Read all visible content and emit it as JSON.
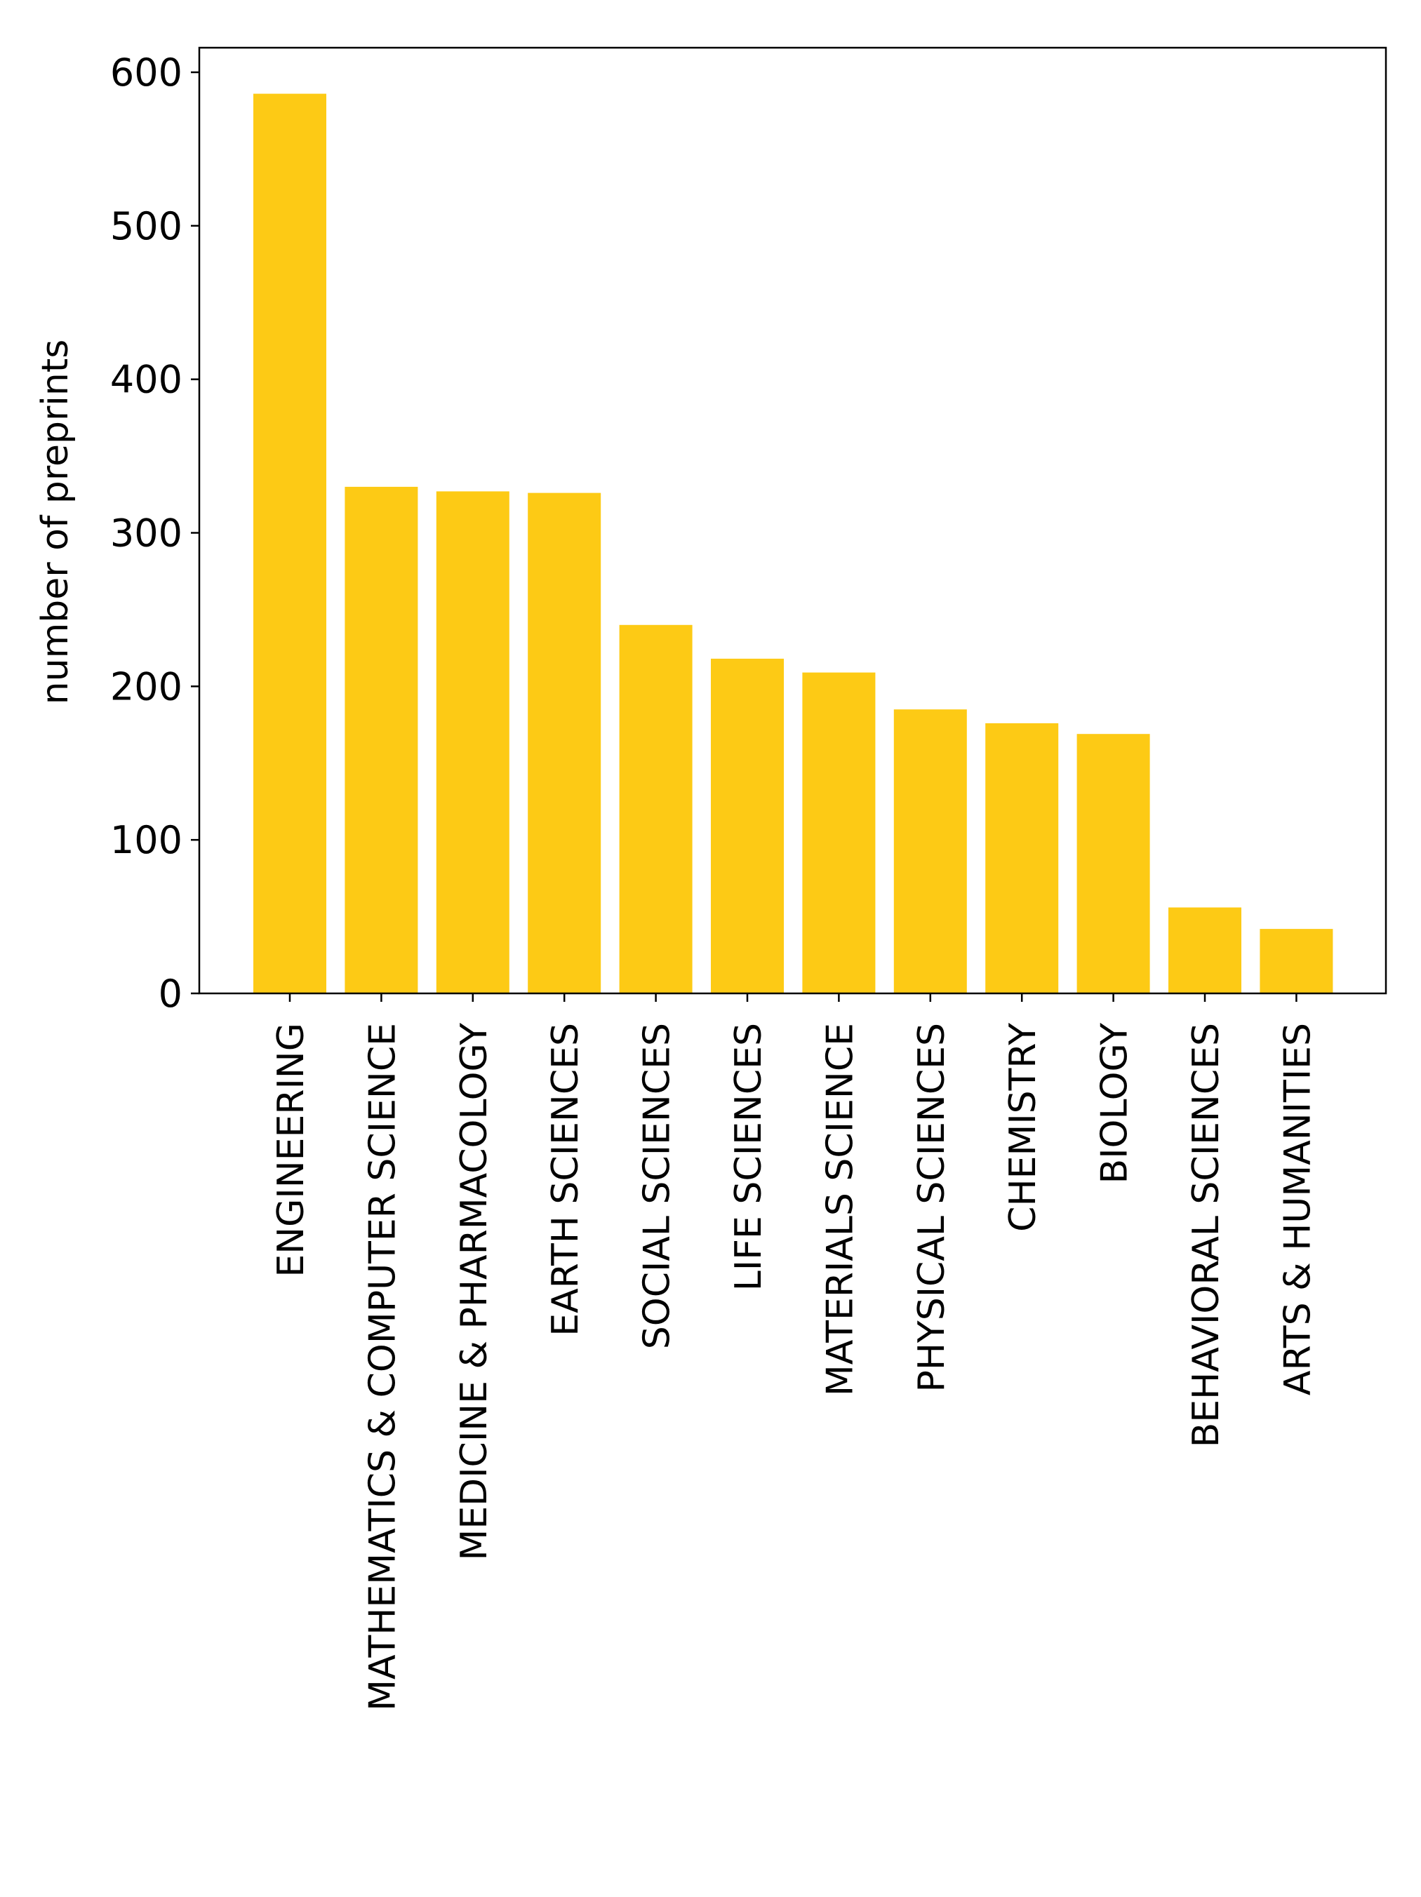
{
  "chart_data": {
    "type": "bar",
    "title": "",
    "xlabel": "",
    "ylabel": "number of preprints",
    "categories": [
      "ENGINEERING",
      "MATHEMATICS & COMPUTER SCIENCE",
      "MEDICINE & PHARMACOLOGY",
      "EARTH SCIENCES",
      "SOCIAL SCIENCES",
      "LIFE SCIENCES",
      "MATERIALS SCIENCE",
      "PHYSICAL SCIENCES",
      "CHEMISTRY",
      "BIOLOGY",
      "BEHAVIORAL SCIENCES",
      "ARTS & HUMANITIES"
    ],
    "values": [
      586,
      330,
      327,
      326,
      240,
      218,
      209,
      185,
      176,
      169,
      56,
      42
    ],
    "ylim": [
      0,
      616
    ],
    "yticks": [
      0,
      100,
      200,
      300,
      400,
      500,
      600
    ],
    "grid": false,
    "legend": "none",
    "colors": {
      "bar": "#fdca15",
      "axis": "#000000",
      "background": "#ffffff"
    }
  }
}
